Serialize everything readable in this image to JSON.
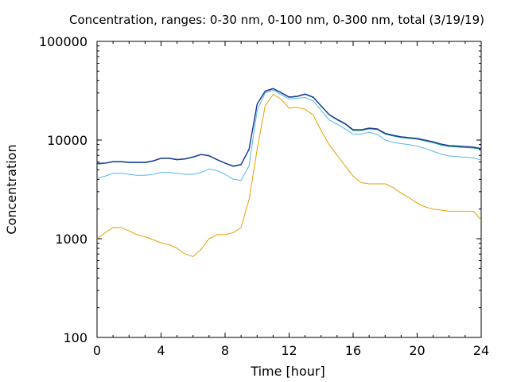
{
  "chart_data": {
    "type": "line",
    "title": "Concentration, ranges: 0-30 nm, 0-100 nm, 0-300 nm, total (3/19/19)",
    "xlabel": "Time [hour]",
    "ylabel": "Concentration",
    "xlim": [
      0,
      24
    ],
    "ylim": [
      100,
      100000
    ],
    "yscale": "log",
    "grid": false,
    "legend": "none",
    "x_ticks": [
      0,
      4,
      8,
      12,
      16,
      20,
      24
    ],
    "x_tick_labels": [
      "0",
      "4",
      "8",
      "12",
      "16",
      "20",
      "24"
    ],
    "y_ticks": [
      100,
      1000,
      10000,
      100000
    ],
    "y_tick_labels": [
      "100",
      "1000",
      "10000",
      "100000"
    ],
    "series": [
      {
        "color": "#e69f00",
        "x": [
          0,
          0.5,
          1,
          1.5,
          2,
          2.5,
          3,
          3.5,
          4,
          4.5,
          5,
          5.5,
          6,
          6.5,
          7,
          7.5,
          8,
          8.5,
          9,
          9.2,
          9.5,
          10,
          10.5,
          11,
          11.5,
          12,
          12.5,
          13,
          13.5,
          14,
          14.5,
          15,
          15.5,
          16,
          16.5,
          17,
          17.5,
          18,
          18.5,
          19,
          19.5,
          20,
          20.5,
          21,
          21.5,
          22,
          22.5,
          23,
          23.5,
          24
        ],
        "values": [
          1000,
          1150,
          1300,
          1300,
          1200,
          1100,
          1050,
          980,
          910,
          870,
          800,
          700,
          660,
          780,
          1000,
          1100,
          1100,
          1150,
          1300,
          1700,
          2500,
          8000,
          22000,
          29000,
          26000,
          21000,
          21500,
          20500,
          18000,
          12500,
          9000,
          7000,
          5500,
          4300,
          3700,
          3600,
          3600,
          3600,
          3300,
          2900,
          2600,
          2300,
          2100,
          2000,
          1950,
          1900,
          1900,
          1900,
          1900,
          1550
        ]
      },
      {
        "color": "#56b4e9",
        "x": [
          0,
          0.5,
          1,
          1.5,
          2,
          2.5,
          3,
          3.5,
          4,
          4.5,
          5,
          5.5,
          6,
          6.5,
          7,
          7.5,
          8,
          8.5,
          9,
          9.5,
          10,
          10.5,
          11,
          11.5,
          12,
          12.5,
          13,
          13.5,
          14,
          14.5,
          15,
          15.5,
          16,
          16.5,
          17,
          17.5,
          18,
          18.5,
          19,
          19.5,
          20,
          20.5,
          21,
          21.5,
          22,
          22.5,
          23,
          23.5,
          24
        ],
        "values": [
          4100,
          4300,
          4600,
          4600,
          4500,
          4400,
          4400,
          4500,
          4700,
          4700,
          4600,
          4500,
          4500,
          4700,
          5100,
          4900,
          4500,
          4000,
          3900,
          5500,
          20000,
          30000,
          32000,
          29000,
          26000,
          26500,
          27000,
          25000,
          20000,
          16000,
          14500,
          13000,
          11500,
          11500,
          12000,
          11500,
          10000,
          9500,
          9200,
          9000,
          8700,
          8200,
          7700,
          7200,
          6900,
          6800,
          6700,
          6600,
          6300
        ]
      },
      {
        "color": "#009e73",
        "x": [
          0,
          0.5,
          1,
          1.5,
          2,
          2.5,
          3,
          3.5,
          4,
          4.5,
          5,
          5.5,
          6,
          6.5,
          7,
          7.5,
          8,
          8.5,
          9,
          9.5,
          10,
          10.5,
          11,
          11.5,
          12,
          12.5,
          13,
          13.5,
          14,
          14.5,
          15,
          15.5,
          16,
          16.5,
          17,
          17.5,
          18,
          18.5,
          19,
          19.5,
          20,
          20.5,
          21,
          21.5,
          22,
          22.5,
          23,
          23.5,
          24
        ],
        "values": [
          5700,
          5800,
          6000,
          6000,
          5900,
          5900,
          5900,
          6100,
          6500,
          6500,
          6300,
          6400,
          6700,
          7100,
          6900,
          6300,
          5800,
          5400,
          5600,
          8000,
          23000,
          31000,
          33000,
          30000,
          27000,
          27500,
          29000,
          27000,
          22000,
          18000,
          16000,
          14500,
          12500,
          12500,
          13000,
          12800,
          11500,
          11000,
          10600,
          10400,
          10200,
          9800,
          9400,
          8900,
          8600,
          8500,
          8400,
          8300,
          8100
        ]
      },
      {
        "color": "#23389a",
        "x": [
          0,
          0.5,
          1,
          1.5,
          2,
          2.5,
          3,
          3.5,
          4,
          4.5,
          5,
          5.5,
          6,
          6.5,
          7,
          7.5,
          8,
          8.5,
          9,
          9.5,
          10,
          10.5,
          11,
          11.5,
          12,
          12.5,
          13,
          13.5,
          14,
          14.5,
          15,
          15.5,
          16,
          16.5,
          17,
          17.5,
          18,
          18.5,
          19,
          19.5,
          20,
          20.5,
          21,
          21.5,
          22,
          22.5,
          23,
          23.5,
          24
        ],
        "values": [
          5800,
          5850,
          6050,
          6050,
          5950,
          5950,
          5950,
          6150,
          6550,
          6550,
          6350,
          6450,
          6750,
          7150,
          6950,
          6350,
          5850,
          5450,
          5650,
          8100,
          23200,
          31300,
          33300,
          30300,
          27300,
          27800,
          29300,
          27300,
          22200,
          18200,
          16200,
          14700,
          12700,
          12700,
          13200,
          13000,
          11700,
          11200,
          10800,
          10600,
          10400,
          10000,
          9600,
          9100,
          8800,
          8700,
          8600,
          8500,
          8200
        ]
      }
    ]
  }
}
